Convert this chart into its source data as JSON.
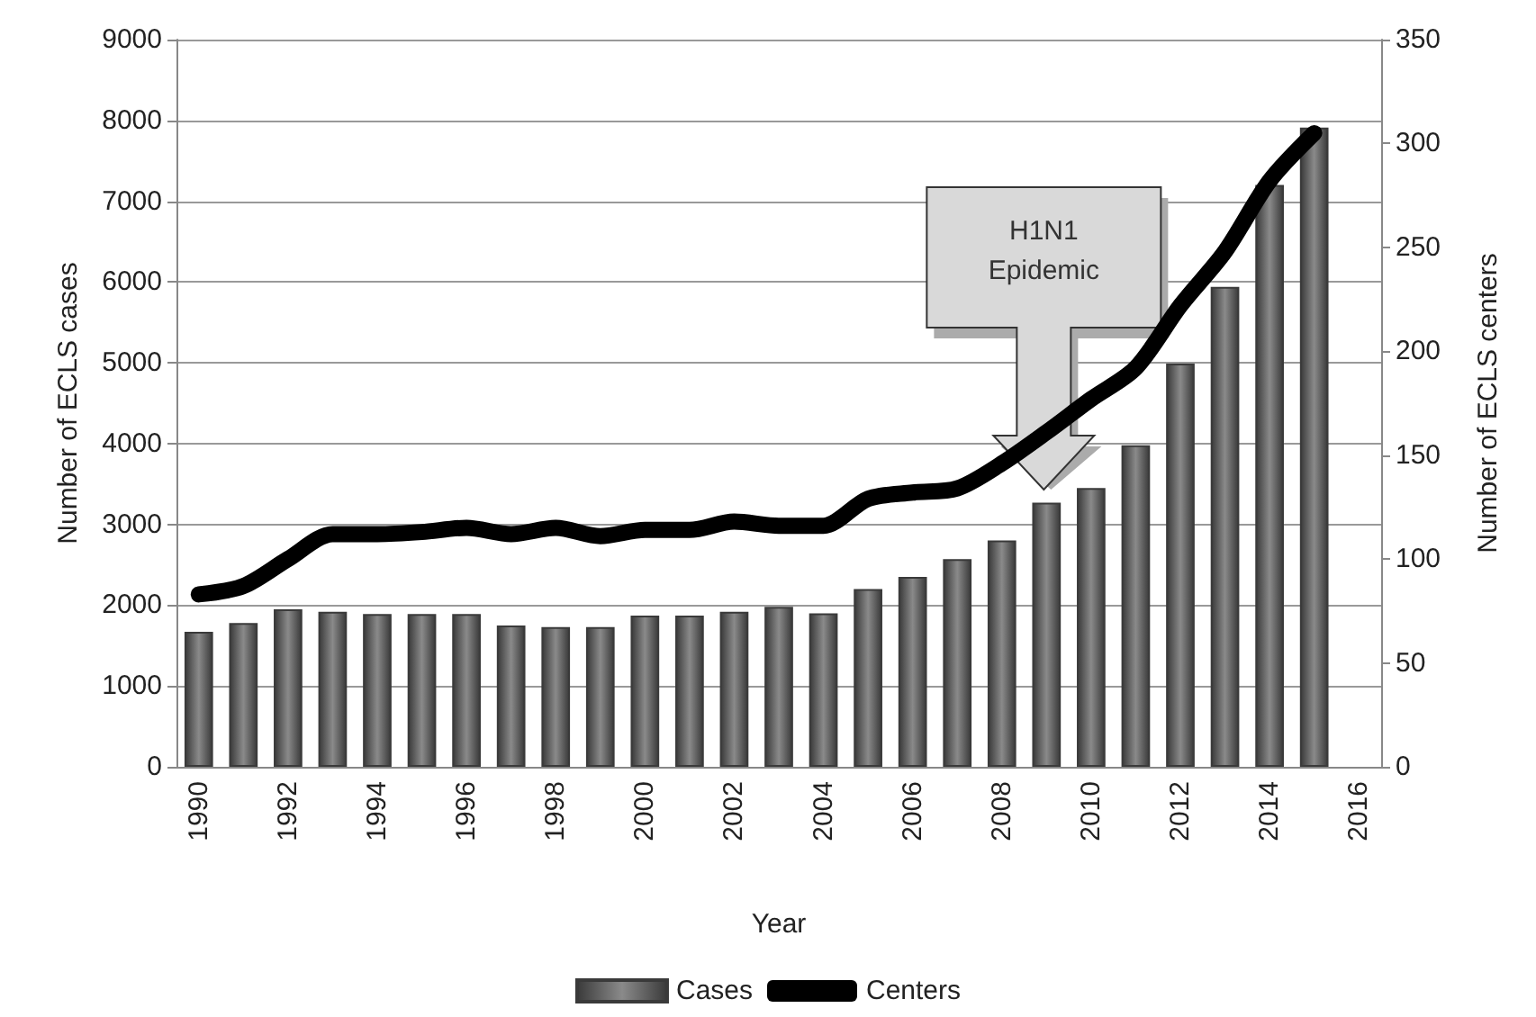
{
  "chart_data": {
    "type": "bar",
    "xlabel": "Year",
    "ylabel": "Number of ECLS cases",
    "y2label": "Number of ECLS centers",
    "categories": [
      "1990",
      null,
      "1992",
      null,
      "1994",
      null,
      "1996",
      null,
      "1998",
      null,
      "2000",
      null,
      "2002",
      null,
      "2004",
      null,
      "2006",
      null,
      "2008",
      null,
      "2010",
      null,
      "2012",
      null,
      "2014",
      null,
      "2016"
    ],
    "series": [
      {
        "name": "Cases",
        "color": "#3a3a3a",
        "values": [
          1670,
          1780,
          1950,
          1920,
          1890,
          1890,
          1890,
          1750,
          1730,
          1730,
          1870,
          1870,
          1920,
          1980,
          1900,
          2200,
          2350,
          2570,
          2800,
          3270,
          3450,
          3980,
          4990,
          5940,
          7200,
          7910,
          null
        ]
      },
      {
        "name": "Centers",
        "type": "line",
        "axis": "y2",
        "color": "#000000",
        "values": [
          83,
          87,
          100,
          112,
          112,
          113,
          115,
          112,
          115,
          111,
          114,
          114,
          118,
          116,
          116,
          129,
          132,
          134,
          146,
          161,
          177,
          192,
          222,
          248,
          282,
          305,
          null
        ]
      }
    ],
    "ylim": [
      0,
      9000
    ],
    "yticks": [
      0,
      1000,
      2000,
      3000,
      4000,
      5000,
      6000,
      7000,
      8000,
      9000
    ],
    "y2lim": [
      0,
      350
    ],
    "y2ticks": [
      0,
      50,
      100,
      150,
      200,
      250,
      300,
      350
    ],
    "annotations": [
      "H1N1 Epidemic"
    ],
    "grid": "y",
    "legend": "bottom",
    "marker": "none",
    "line_style": "solid"
  }
}
